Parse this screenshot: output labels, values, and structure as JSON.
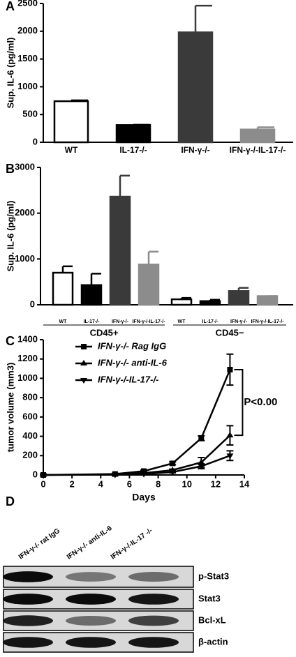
{
  "chart_data": [
    {
      "type": "bar",
      "panel": "A",
      "ylabel": "Sup. IL-6 (pg/ml)",
      "categories": [
        "WT",
        "IL-17-/-",
        "IFN-γ-/-",
        "IFN-γ-/-IL-17-/-"
      ],
      "values": [
        740,
        310,
        1980,
        230
      ],
      "errors": [
        15,
        5,
        480,
        40
      ],
      "colors": [
        "#ffffff",
        "#000000",
        "#3a3a3a",
        "#8c8c8c"
      ],
      "ylim": [
        0,
        2500
      ],
      "yticks": [
        0,
        500,
        1000,
        1500,
        2000,
        2500
      ]
    },
    {
      "type": "bar",
      "panel": "B",
      "ylabel": "Sup. IL-6 (pg/ml)",
      "categories": [
        "WT",
        "IL-17-/-",
        "IFN-γ-/-",
        "IFN-γ-/-IL-17-/-",
        "WT",
        "IL-17-/-",
        "IFN-γ-/-",
        "IFN-γ-/-IL-17-/-"
      ],
      "groups": [
        "CD45+",
        "CD45−"
      ],
      "values": [
        700,
        430,
        2360,
        880,
        120,
        80,
        300,
        190
      ],
      "errors": [
        140,
        250,
        460,
        280,
        30,
        30,
        70,
        0
      ],
      "colors": [
        "#ffffff",
        "#000000",
        "#3a3a3a",
        "#8c8c8c",
        "#ffffff",
        "#000000",
        "#3a3a3a",
        "#8c8c8c"
      ],
      "ylim": [
        0,
        3000
      ],
      "yticks": [
        0,
        1000,
        2000,
        3000
      ]
    },
    {
      "type": "line",
      "panel": "C",
      "ylabel": "tumor volume (mm3)",
      "xlabel": "Days",
      "x": [
        0,
        5,
        7,
        9,
        11,
        13
      ],
      "series": [
        {
          "name": "IFN-γ-/- Rag IgG",
          "marker": "square",
          "color": "#000000",
          "values": [
            0,
            10,
            40,
            120,
            380,
            1090
          ],
          "errors": [
            0,
            5,
            10,
            15,
            25,
            160
          ]
        },
        {
          "name": "IFN-γ-/- anti-IL-6",
          "marker": "triangle-up",
          "color": "#000000",
          "values": [
            0,
            5,
            20,
            50,
            130,
            410
          ],
          "errors": [
            0,
            3,
            5,
            10,
            50,
            100
          ]
        },
        {
          "name": "IFN-γ-/-IL-17-/-",
          "marker": "triangle-down",
          "color": "#000000",
          "values": [
            0,
            3,
            10,
            30,
            90,
            200
          ],
          "errors": [
            0,
            2,
            5,
            8,
            25,
            50
          ]
        }
      ],
      "annotation": "P<0.00",
      "xlim": [
        0,
        14
      ],
      "xticks": [
        0,
        2,
        4,
        6,
        8,
        10,
        12,
        14
      ],
      "ylim": [
        0,
        1400
      ],
      "yticks": [
        0,
        200,
        400,
        600,
        800,
        1000,
        1200,
        1400
      ]
    }
  ],
  "blot": {
    "panel": "D",
    "lanes": [
      "IFN-γ-/- rat IgG",
      "IFN-γ-/- anti-IL-6",
      "IFN-γ-/-IL-17 -/-"
    ],
    "rows": [
      "p-Stat3",
      "Stat3",
      "Bcl-xL",
      "β-actin"
    ]
  }
}
